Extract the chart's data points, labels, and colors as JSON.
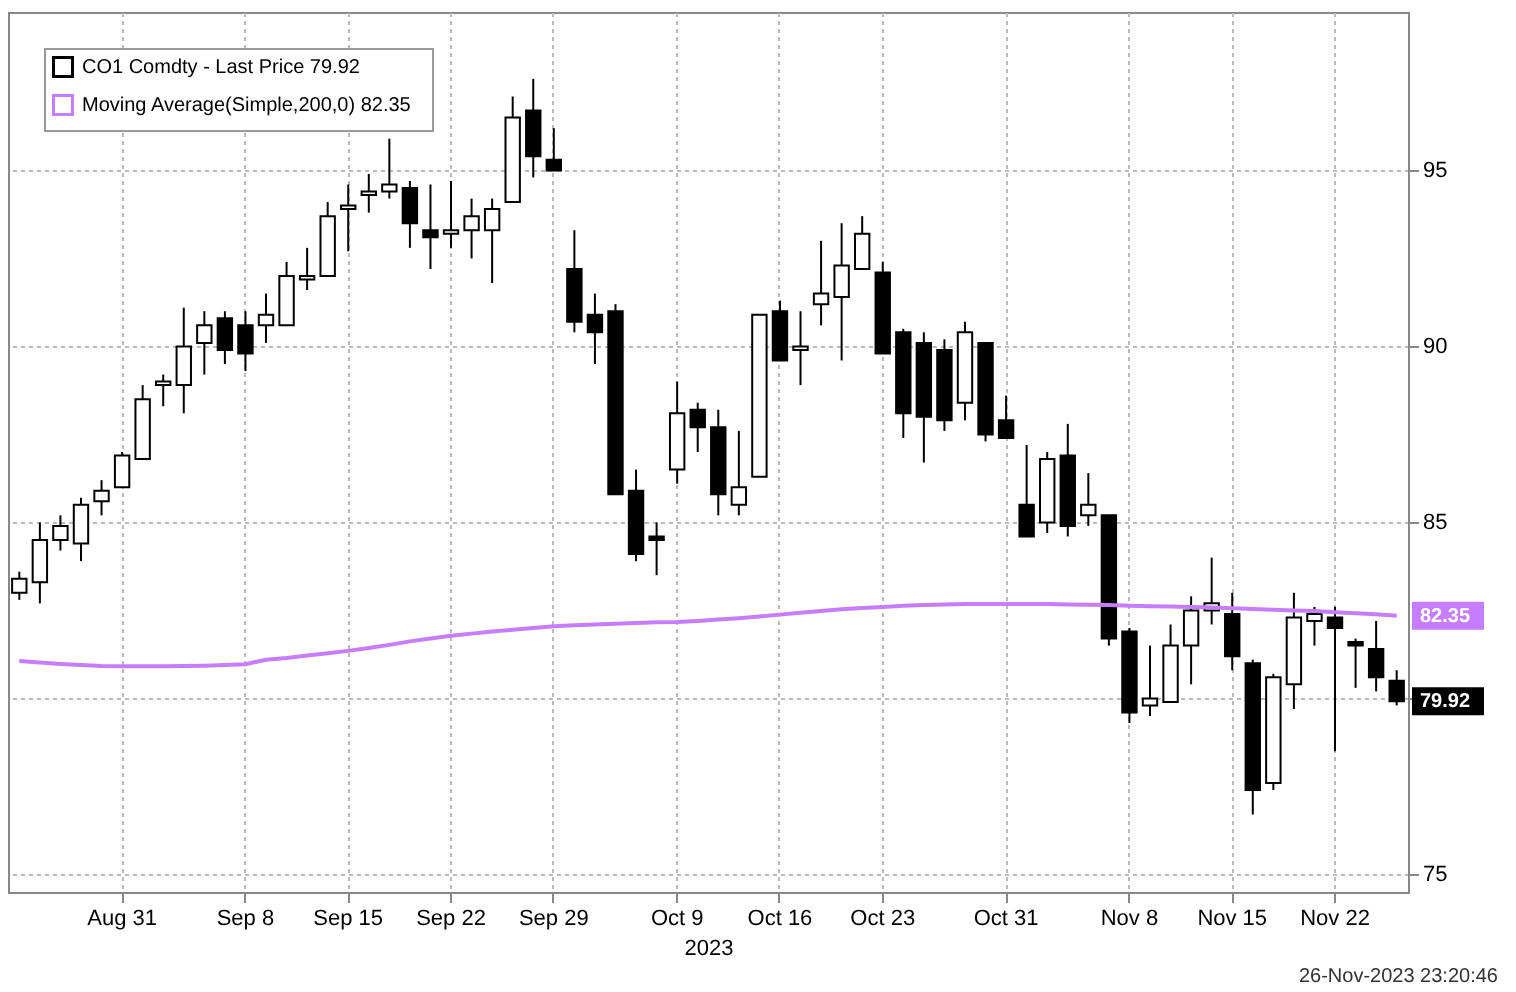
{
  "chart_data": {
    "type": "candlestick",
    "xlabel": "2023",
    "legend": "top left",
    "grid": true,
    "ylim": [
      74.5,
      99.5
    ],
    "yticks": [
      75,
      {
        "value": 80,
        "label": null
      },
      85,
      90,
      95
    ],
    "categories": [
      null,
      null,
      null,
      null,
      null,
      "Aug 31",
      null,
      null,
      null,
      null,
      null,
      "Sep 8",
      null,
      null,
      null,
      null,
      "Sep 15",
      null,
      null,
      null,
      null,
      "Sep 22",
      null,
      null,
      null,
      null,
      "Sep 29",
      null,
      null,
      null,
      null,
      null,
      "Oct 9",
      null,
      null,
      null,
      null,
      "Oct 16",
      null,
      null,
      null,
      null,
      "Oct 23",
      null,
      null,
      null,
      null,
      null,
      "Oct 31",
      null,
      null,
      null,
      null,
      null,
      "Nov 8",
      null,
      null,
      null,
      null,
      "Nov 15",
      null,
      null,
      null,
      null,
      "Nov 22",
      null,
      null,
      null
    ],
    "series": [
      {
        "name": "CO1 Comdty - Last Price   79.92",
        "color": "#000000",
        "ohlc": [
          [
            83.0,
            83.6,
            82.8,
            83.4
          ],
          [
            83.3,
            85.0,
            82.7,
            84.5
          ],
          [
            84.5,
            85.2,
            84.2,
            84.9
          ],
          [
            84.4,
            85.7,
            83.9,
            85.5
          ],
          [
            85.6,
            86.2,
            85.2,
            85.9
          ],
          [
            86.0,
            87.0,
            86.0,
            86.9
          ],
          [
            86.8,
            88.9,
            86.8,
            88.5
          ],
          [
            88.9,
            89.2,
            88.3,
            89.0
          ],
          [
            88.9,
            91.1,
            88.1,
            90.0
          ],
          [
            90.1,
            91.0,
            89.2,
            90.6
          ],
          [
            90.8,
            91.0,
            89.5,
            89.9
          ],
          [
            90.6,
            91.0,
            89.3,
            89.8
          ],
          [
            90.6,
            91.5,
            90.1,
            90.9
          ],
          [
            90.6,
            92.4,
            90.6,
            92.0
          ],
          [
            91.9,
            92.8,
            91.6,
            92.0
          ],
          [
            92.0,
            94.1,
            92.0,
            93.7
          ],
          [
            93.9,
            94.6,
            92.7,
            94.0
          ],
          [
            94.3,
            94.9,
            93.8,
            94.4
          ],
          [
            94.4,
            95.9,
            94.2,
            94.6
          ],
          [
            94.5,
            94.7,
            92.8,
            93.5
          ],
          [
            93.3,
            94.6,
            92.2,
            93.1
          ],
          [
            93.2,
            94.7,
            92.8,
            93.3
          ],
          [
            93.3,
            94.2,
            92.5,
            93.7
          ],
          [
            93.3,
            94.2,
            91.8,
            93.9
          ],
          [
            94.1,
            97.1,
            94.1,
            96.5
          ],
          [
            96.7,
            97.6,
            94.8,
            95.4
          ],
          [
            95.3,
            96.2,
            95.0,
            95.0
          ],
          [
            92.2,
            93.3,
            90.4,
            90.7
          ],
          [
            90.9,
            91.5,
            89.5,
            90.4
          ],
          [
            91.0,
            91.2,
            85.8,
            85.8
          ],
          [
            85.9,
            86.5,
            83.9,
            84.1
          ],
          [
            84.6,
            85.0,
            83.5,
            84.5
          ],
          [
            86.5,
            89.0,
            86.1,
            88.1
          ],
          [
            88.2,
            88.4,
            87.0,
            87.7
          ],
          [
            87.7,
            88.2,
            85.2,
            85.8
          ],
          [
            85.5,
            87.6,
            85.2,
            86.0
          ],
          [
            86.3,
            90.9,
            86.3,
            90.9
          ],
          [
            91.0,
            91.3,
            89.6,
            89.6
          ],
          [
            89.9,
            91.0,
            88.9,
            90.0
          ],
          [
            91.2,
            93.0,
            90.6,
            91.5
          ],
          [
            91.4,
            93.5,
            89.6,
            92.3
          ],
          [
            92.2,
            93.7,
            92.2,
            93.2
          ],
          [
            92.1,
            92.4,
            89.8,
            89.8
          ],
          [
            90.4,
            90.5,
            87.4,
            88.1
          ],
          [
            90.1,
            90.4,
            86.7,
            88.0
          ],
          [
            89.9,
            90.2,
            87.6,
            87.9
          ],
          [
            88.4,
            90.7,
            87.9,
            90.4
          ],
          [
            90.1,
            90.1,
            87.3,
            87.5
          ],
          [
            87.9,
            88.6,
            87.4,
            87.4
          ],
          [
            85.5,
            87.2,
            84.6,
            84.6
          ],
          [
            85.0,
            87.0,
            84.7,
            86.8
          ],
          [
            86.9,
            87.8,
            84.6,
            84.9
          ],
          [
            85.2,
            86.4,
            84.9,
            85.5
          ],
          [
            85.2,
            85.2,
            81.5,
            81.7
          ],
          [
            81.9,
            82.0,
            79.3,
            79.6
          ],
          [
            79.8,
            81.5,
            79.5,
            80.0
          ],
          [
            79.9,
            82.1,
            79.9,
            81.5
          ],
          [
            81.5,
            82.9,
            80.4,
            82.5
          ],
          [
            82.5,
            84.0,
            82.1,
            82.7
          ],
          [
            82.4,
            83.0,
            80.8,
            81.2
          ],
          [
            81.0,
            81.1,
            76.7,
            77.4
          ],
          [
            77.6,
            80.7,
            77.4,
            80.6
          ],
          [
            80.4,
            83.0,
            79.7,
            82.3
          ],
          [
            82.2,
            82.6,
            81.5,
            82.4
          ],
          [
            82.3,
            82.6,
            78.5,
            82.0
          ],
          [
            81.6,
            81.7,
            80.3,
            81.5
          ],
          [
            81.4,
            82.2,
            80.2,
            80.6
          ],
          [
            80.5,
            80.8,
            79.8,
            79.92
          ]
        ]
      },
      {
        "name": "Moving Average(Simple,200,0)   82.35",
        "type": "line",
        "color": "#c77dff",
        "values": [
          81.06,
          81.02,
          80.98,
          80.95,
          80.92,
          80.91,
          80.91,
          80.91,
          80.92,
          80.93,
          80.95,
          80.97,
          81.1,
          81.15,
          81.22,
          81.28,
          81.35,
          81.43,
          81.52,
          81.62,
          81.7,
          81.78,
          81.84,
          81.9,
          81.95,
          82.0,
          82.05,
          82.08,
          82.1,
          82.12,
          82.14,
          82.16,
          82.17,
          82.2,
          82.24,
          82.28,
          82.33,
          82.38,
          82.43,
          82.48,
          82.53,
          82.57,
          82.6,
          82.63,
          82.65,
          82.67,
          82.68,
          82.68,
          82.68,
          82.68,
          82.68,
          82.67,
          82.66,
          82.65,
          82.63,
          82.62,
          82.61,
          82.6,
          82.58,
          82.56,
          82.54,
          82.52,
          82.5,
          82.48,
          82.45,
          82.42,
          82.39,
          82.35
        ]
      }
    ],
    "annotations": [
      "79.92",
      "82.35",
      "26-Nov-2023 23:20:46"
    ]
  }
}
